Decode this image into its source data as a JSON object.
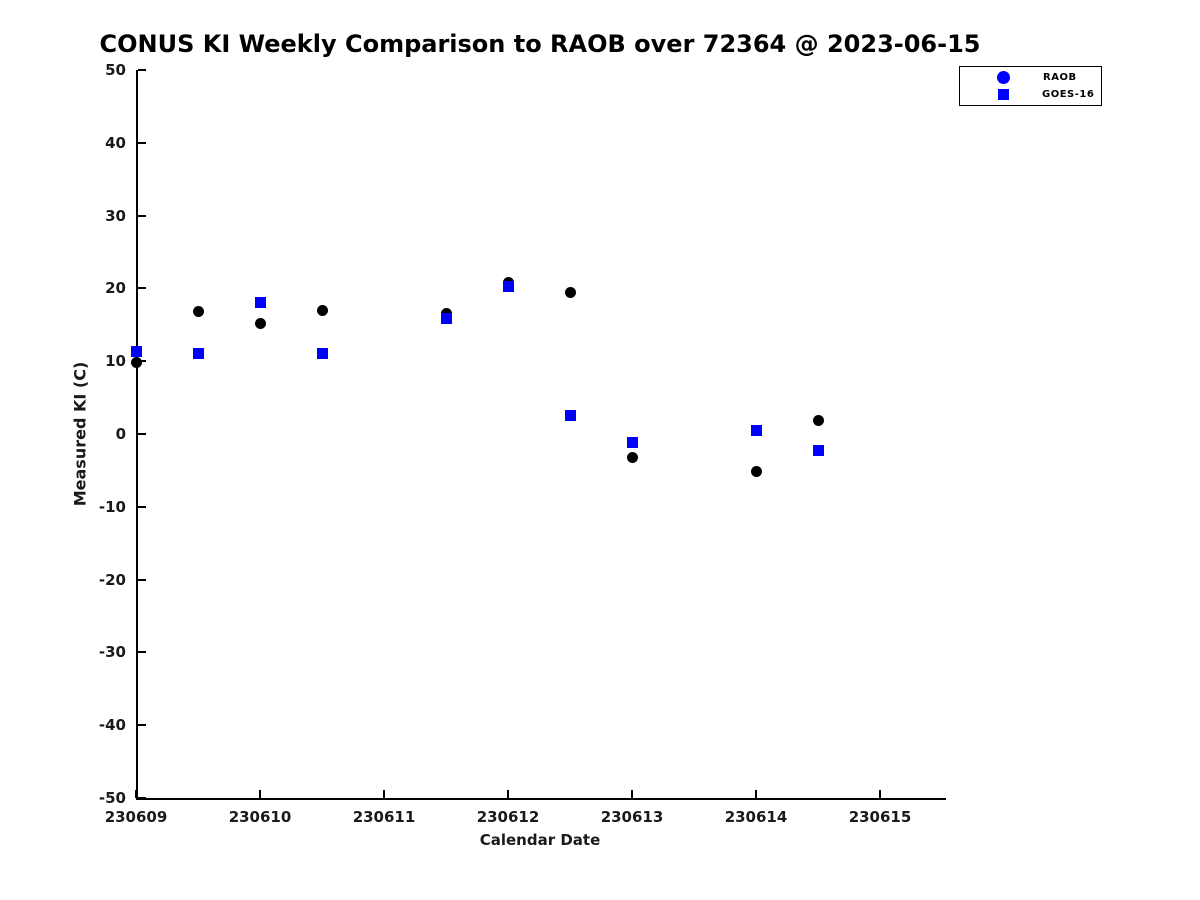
{
  "colors": {
    "raob_plot_marker": "#000000",
    "goes_plot_marker": "#0000ff",
    "legend_marker": "#0000ff",
    "axis_line": "#000000",
    "tick_label": "#1a1a1a"
  },
  "legend": {
    "items": [
      {
        "label": "RAOB",
        "marker": "circle",
        "color": "#0000ff"
      },
      {
        "label": "GOES-16",
        "marker": "square",
        "color": "#0000ff"
      }
    ]
  },
  "chart_data": {
    "type": "scatter",
    "title": "CONUS KI Weekly Comparison to RAOB over 72364 @ 2023-06-15",
    "xlabel": "Calendar Date",
    "ylabel": "Measured KI (C)",
    "x_ticks": [
      230609,
      230610,
      230611,
      230612,
      230613,
      230614,
      230615
    ],
    "y_ticks": [
      50,
      40,
      30,
      20,
      10,
      0,
      -10,
      -20,
      -30,
      -40,
      -50
    ],
    "xlim": [
      230609,
      230615.52
    ],
    "ylim": [
      -50,
      50
    ],
    "grid": false,
    "legend_position": "top-right-outside",
    "series": [
      {
        "name": "RAOB",
        "marker": "circle",
        "color": "#000000",
        "points": [
          [
            230609.0,
            9.8
          ],
          [
            230609.5,
            16.8
          ],
          [
            230610.0,
            15.2
          ],
          [
            230610.5,
            17.0
          ],
          [
            230611.5,
            16.5
          ],
          [
            230612.0,
            20.8
          ],
          [
            230612.5,
            19.5
          ],
          [
            230613.0,
            -3.2
          ],
          [
            230614.0,
            -5.1
          ],
          [
            230614.5,
            1.9
          ]
        ]
      },
      {
        "name": "GOES-16",
        "marker": "square",
        "color": "#0000ff",
        "points": [
          [
            230609.0,
            11.3
          ],
          [
            230609.5,
            11.0
          ],
          [
            230610.0,
            18.0
          ],
          [
            230610.5,
            11.0
          ],
          [
            230611.5,
            15.9
          ],
          [
            230612.0,
            20.3
          ],
          [
            230612.5,
            2.5
          ],
          [
            230613.0,
            -1.2
          ],
          [
            230614.0,
            0.5
          ],
          [
            230614.5,
            -2.3
          ]
        ]
      }
    ]
  }
}
